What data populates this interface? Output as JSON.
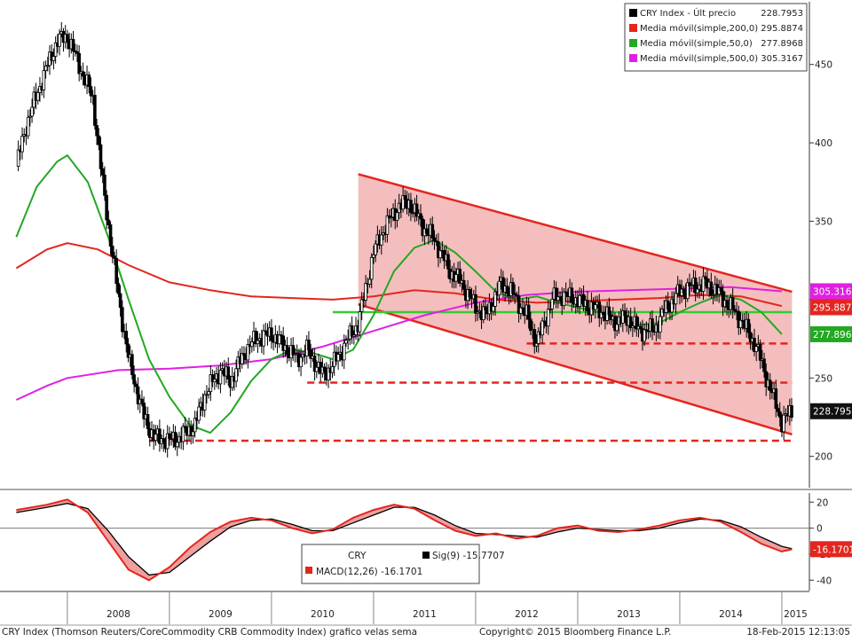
{
  "chart_data": [
    {
      "type": "line",
      "subtype": "candlestick",
      "panel": "price",
      "instrument": "CRY Index (Thomson Reuters/CoreCommodity CRB Commodity Index)",
      "ylim": [
        180,
        490
      ],
      "y_ticks": [
        200,
        250,
        300,
        350,
        400,
        450
      ],
      "x_labels": [
        "2008",
        "2009",
        "2010",
        "2011",
        "2012",
        "2013",
        "2014",
        "2015"
      ],
      "legend": [
        {
          "label": "CRY Index - Últ precio",
          "value": "228.7953",
          "color": "#000000"
        },
        {
          "label": "Media móvil(simple,200,0)",
          "value": "295.8874",
          "color": "#e3261e"
        },
        {
          "label": "Media móvil(simple,50,0)",
          "value": "277.8968",
          "color": "#22a822"
        },
        {
          "label": "Media móvil(simple,500,0)",
          "value": "305.3167",
          "color": "#e020e0"
        }
      ],
      "last_value_tags": [
        {
          "text": "305.3167",
          "value": 305.3167,
          "bg": "#e020e0",
          "fg": "#ffffff"
        },
        {
          "text": "295.8874",
          "value": 295.8874,
          "bg": "#e3261e",
          "fg": "#ffffff"
        },
        {
          "text": "277.8968",
          "value": 277.8968,
          "bg": "#22a822",
          "fg": "#ffffff"
        },
        {
          "text": "228.7953",
          "value": 228.7953,
          "bg": "#111111",
          "fg": "#ffffff"
        }
      ],
      "series": [
        {
          "name": "CRY Index",
          "points": [
            [
              2007.5,
              385
            ],
            [
              2007.6,
              412
            ],
            [
              2007.75,
              440
            ],
            [
              2007.9,
              465
            ],
            [
              2008.0,
              468
            ],
            [
              2008.1,
              452
            ],
            [
              2008.25,
              428
            ],
            [
              2008.35,
              372
            ],
            [
              2008.5,
              302
            ],
            [
              2008.6,
              262
            ],
            [
              2008.75,
              225
            ],
            [
              2008.85,
              212
            ],
            [
              2009.0,
              210
            ],
            [
              2009.1,
              212
            ],
            [
              2009.25,
              220
            ],
            [
              2009.35,
              240
            ],
            [
              2009.5,
              255
            ],
            [
              2009.6,
              248
            ],
            [
              2009.75,
              268
            ],
            [
              2009.85,
              275
            ],
            [
              2010.0,
              278
            ],
            [
              2010.1,
              272
            ],
            [
              2010.25,
              262
            ],
            [
              2010.35,
              268
            ],
            [
              2010.5,
              252
            ],
            [
              2010.6,
              258
            ],
            [
              2010.75,
              275
            ],
            [
              2010.85,
              285
            ],
            [
              2011.0,
              330
            ],
            [
              2011.1,
              345
            ],
            [
              2011.25,
              360
            ],
            [
              2011.35,
              362
            ],
            [
              2011.5,
              345
            ],
            [
              2011.6,
              338
            ],
            [
              2011.75,
              318
            ],
            [
              2011.85,
              312
            ],
            [
              2012.0,
              295
            ],
            [
              2012.1,
              290
            ],
            [
              2012.25,
              310
            ],
            [
              2012.35,
              305
            ],
            [
              2012.5,
              290
            ],
            [
              2012.6,
              272
            ],
            [
              2012.75,
              300
            ],
            [
              2012.85,
              303
            ],
            [
              2013.0,
              300
            ],
            [
              2013.1,
              296
            ],
            [
              2013.25,
              292
            ],
            [
              2013.35,
              286
            ],
            [
              2013.5,
              288
            ],
            [
              2013.6,
              280
            ],
            [
              2013.75,
              281
            ],
            [
              2013.85,
              293
            ],
            [
              2014.0,
              305
            ],
            [
              2014.1,
              308
            ],
            [
              2014.25,
              310
            ],
            [
              2014.35,
              306
            ],
            [
              2014.5,
              295
            ],
            [
              2014.6,
              287
            ],
            [
              2014.75,
              270
            ],
            [
              2014.85,
              250
            ],
            [
              2015.0,
              222
            ],
            [
              2015.1,
              228.8
            ]
          ]
        },
        {
          "name": "Media móvil(simple,50,0)",
          "points": [
            [
              2007.5,
              340
            ],
            [
              2007.7,
              372
            ],
            [
              2007.9,
              388
            ],
            [
              2008.0,
              392
            ],
            [
              2008.2,
              375
            ],
            [
              2008.4,
              340
            ],
            [
              2008.6,
              300
            ],
            [
              2008.8,
              262
            ],
            [
              2009.0,
              238
            ],
            [
              2009.2,
              220
            ],
            [
              2009.4,
              215
            ],
            [
              2009.6,
              228
            ],
            [
              2009.8,
              248
            ],
            [
              2010.0,
              262
            ],
            [
              2010.2,
              268
            ],
            [
              2010.4,
              266
            ],
            [
              2010.6,
              262
            ],
            [
              2010.8,
              268
            ],
            [
              2011.0,
              290
            ],
            [
              2011.2,
              318
            ],
            [
              2011.4,
              333
            ],
            [
              2011.6,
              338
            ],
            [
              2011.8,
              330
            ],
            [
              2012.0,
              318
            ],
            [
              2012.2,
              305
            ],
            [
              2012.4,
              300
            ],
            [
              2012.6,
              302
            ],
            [
              2012.8,
              298
            ],
            [
              2013.0,
              295
            ],
            [
              2013.2,
              292
            ],
            [
              2013.4,
              288
            ],
            [
              2013.6,
              284
            ],
            [
              2013.8,
              285
            ],
            [
              2014.0,
              292
            ],
            [
              2014.2,
              298
            ],
            [
              2014.4,
              303
            ],
            [
              2014.6,
              300
            ],
            [
              2014.8,
              292
            ],
            [
              2015.0,
              277.8968
            ]
          ]
        },
        {
          "name": "Media móvil(simple,200,0)",
          "points": [
            [
              2007.5,
              320
            ],
            [
              2007.8,
              332
            ],
            [
              2008.0,
              336
            ],
            [
              2008.3,
              332
            ],
            [
              2008.6,
              322
            ],
            [
              2009.0,
              311
            ],
            [
              2009.4,
              306
            ],
            [
              2009.8,
              302
            ],
            [
              2010.2,
              301
            ],
            [
              2010.6,
              300
            ],
            [
              2011.0,
              302
            ],
            [
              2011.4,
              306
            ],
            [
              2011.8,
              304
            ],
            [
              2012.2,
              300
            ],
            [
              2012.6,
              298
            ],
            [
              2013.0,
              299
            ],
            [
              2013.4,
              300
            ],
            [
              2013.8,
              301
            ],
            [
              2014.2,
              303
            ],
            [
              2014.6,
              302
            ],
            [
              2015.0,
              295.8874
            ]
          ]
        },
        {
          "name": "Media móvil(simple,500,0)",
          "points": [
            [
              2007.5,
              236
            ],
            [
              2007.8,
              245
            ],
            [
              2008.0,
              250
            ],
            [
              2008.5,
              255
            ],
            [
              2009.0,
              256
            ],
            [
              2009.5,
              258
            ],
            [
              2010.0,
              262
            ],
            [
              2010.5,
              270
            ],
            [
              2011.0,
              280
            ],
            [
              2011.5,
              290
            ],
            [
              2012.0,
              298
            ],
            [
              2012.5,
              303
            ],
            [
              2013.0,
              305
            ],
            [
              2013.5,
              306
            ],
            [
              2014.0,
              307
            ],
            [
              2014.5,
              308
            ],
            [
              2015.0,
              305.3167
            ]
          ]
        }
      ],
      "levels": [
        {
          "value": 292,
          "x": [
            2010.6,
            2015.1
          ],
          "color": "#33cc33",
          "style": "solid"
        },
        {
          "value": 272,
          "x": [
            2012.5,
            2015.1
          ],
          "color": "#e3261e",
          "style": "dashed"
        },
        {
          "value": 247,
          "x": [
            2010.35,
            2015.1
          ],
          "color": "#e3261e",
          "style": "dashed"
        },
        {
          "value": 210,
          "x": [
            2008.8,
            2015.1
          ],
          "color": "#e3261e",
          "style": "dashed"
        }
      ],
      "channel": {
        "upper": [
          [
            2010.85,
            380
          ],
          [
            2015.1,
            305
          ]
        ],
        "lower": [
          [
            2010.85,
            297
          ],
          [
            2015.1,
            214
          ]
        ],
        "fill": "#f2b3b3",
        "stroke": "#e3261e"
      }
    },
    {
      "type": "line",
      "panel": "macd",
      "ylim": [
        -48,
        27
      ],
      "y_ticks": [
        20,
        0,
        -20,
        -40
      ],
      "legend_title": "CRY",
      "legend": [
        {
          "label": "MACD(12,26)",
          "value": "-16.1701",
          "color": "#e3261e"
        },
        {
          "label": "Sig(9)",
          "value": "-15.7707",
          "color": "#000000"
        }
      ],
      "last_value_tag": {
        "text": "-16.1701",
        "value": -16.1701,
        "bg": "#e3261e",
        "fg": "#ffffff"
      },
      "series": [
        {
          "name": "MACD(12,26)",
          "points": [
            [
              2007.5,
              14
            ],
            [
              2007.8,
              18
            ],
            [
              2008.0,
              22
            ],
            [
              2008.2,
              12
            ],
            [
              2008.4,
              -10
            ],
            [
              2008.6,
              -32
            ],
            [
              2008.8,
              -40
            ],
            [
              2009.0,
              -30
            ],
            [
              2009.2,
              -15
            ],
            [
              2009.4,
              -3
            ],
            [
              2009.6,
              5
            ],
            [
              2009.8,
              8
            ],
            [
              2010.0,
              6
            ],
            [
              2010.2,
              0
            ],
            [
              2010.4,
              -4
            ],
            [
              2010.6,
              -1
            ],
            [
              2010.8,
              8
            ],
            [
              2011.0,
              14
            ],
            [
              2011.2,
              18
            ],
            [
              2011.4,
              15
            ],
            [
              2011.6,
              6
            ],
            [
              2011.8,
              -2
            ],
            [
              2012.0,
              -6
            ],
            [
              2012.2,
              -4
            ],
            [
              2012.4,
              -8
            ],
            [
              2012.6,
              -6
            ],
            [
              2012.8,
              0
            ],
            [
              2013.0,
              2
            ],
            [
              2013.2,
              -2
            ],
            [
              2013.4,
              -3
            ],
            [
              2013.6,
              -1
            ],
            [
              2013.8,
              2
            ],
            [
              2014.0,
              6
            ],
            [
              2014.2,
              8
            ],
            [
              2014.4,
              5
            ],
            [
              2014.6,
              -3
            ],
            [
              2014.8,
              -12
            ],
            [
              2015.0,
              -18
            ],
            [
              2015.1,
              -16.2
            ]
          ]
        },
        {
          "name": "Sig(9)",
          "points": [
            [
              2007.5,
              12
            ],
            [
              2007.8,
              16
            ],
            [
              2008.0,
              19
            ],
            [
              2008.2,
              15
            ],
            [
              2008.4,
              -2
            ],
            [
              2008.6,
              -22
            ],
            [
              2008.8,
              -36
            ],
            [
              2009.0,
              -34
            ],
            [
              2009.2,
              -22
            ],
            [
              2009.4,
              -10
            ],
            [
              2009.6,
              1
            ],
            [
              2009.8,
              6
            ],
            [
              2010.0,
              7
            ],
            [
              2010.2,
              3
            ],
            [
              2010.4,
              -2
            ],
            [
              2010.6,
              -2
            ],
            [
              2010.8,
              4
            ],
            [
              2011.0,
              10
            ],
            [
              2011.2,
              16
            ],
            [
              2011.4,
              16
            ],
            [
              2011.6,
              10
            ],
            [
              2011.8,
              2
            ],
            [
              2012.0,
              -4
            ],
            [
              2012.2,
              -5
            ],
            [
              2012.4,
              -6
            ],
            [
              2012.6,
              -7
            ],
            [
              2012.8,
              -3
            ],
            [
              2013.0,
              0
            ],
            [
              2013.2,
              -1
            ],
            [
              2013.4,
              -2
            ],
            [
              2013.6,
              -2
            ],
            [
              2013.8,
              0
            ],
            [
              2014.0,
              4
            ],
            [
              2014.2,
              7
            ],
            [
              2014.4,
              6
            ],
            [
              2014.6,
              1
            ],
            [
              2014.8,
              -7
            ],
            [
              2015.0,
              -14
            ],
            [
              2015.1,
              -15.8
            ]
          ]
        }
      ]
    }
  ],
  "footer": {
    "description": "CRY Index (Thomson Reuters/CoreCommodity CRB Commodity Index) grafico velas sema",
    "copyright": "Copyright© 2015 Bloomberg Finance L.P.",
    "timestamp": "18-Feb-2015 12:13:05"
  }
}
